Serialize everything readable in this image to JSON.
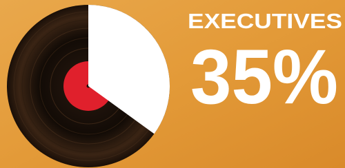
{
  "chart_data": {
    "type": "pie",
    "title": "EXECUTIVES",
    "values": [
      35
    ],
    "value_labels": [
      "35%"
    ],
    "color": "#ffffff"
  }
}
